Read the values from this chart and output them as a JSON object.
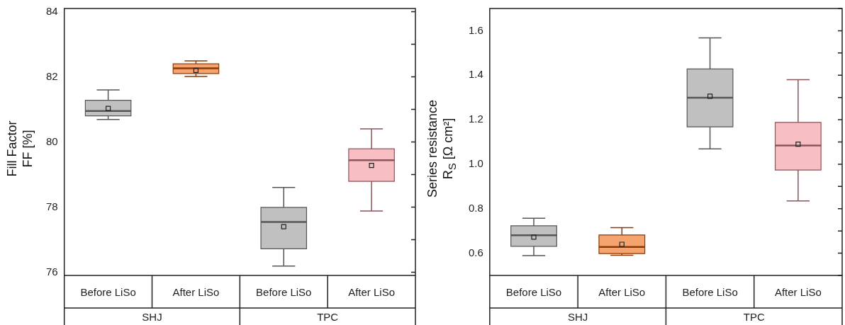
{
  "chart_data": [
    {
      "type": "box",
      "ylabel": "Fill Factor\nFF [%]",
      "categories": [
        "Before LiSo",
        "After LiSo",
        "Before LiSo",
        "After LiSo"
      ],
      "boxes": [
        {
          "low": 80.69,
          "q1": 80.8,
          "median": 80.95,
          "q3": 81.28,
          "high": 81.6,
          "mean": 81.03
        },
        {
          "low": 82.01,
          "q1": 82.1,
          "median": 82.26,
          "q3": 82.4,
          "high": 82.49,
          "mean": 82.2
        },
        {
          "low": 76.19,
          "q1": 76.72,
          "median": 77.54,
          "q3": 77.99,
          "high": 78.6,
          "mean": 77.4
        },
        {
          "low": 77.88,
          "q1": 78.79,
          "median": 79.44,
          "q3": 79.79,
          "high": 80.4,
          "mean": 79.28
        }
      ],
      "colors": [
        "#c0c0c0",
        "#f5a46f",
        "#c0c0c0",
        "#f7bec4"
      ],
      "ylim": [
        75.9,
        84.1
      ],
      "yticks": [
        76,
        {
          "value": 77,
          "label": null
        },
        78,
        {
          "value": 79,
          "label": null
        },
        80,
        {
          "value": 81,
          "label": null
        },
        82,
        {
          "value": 83,
          "label": null
        },
        84
      ],
      "marker": "square",
      "annotations": [
        "SHJ",
        "TPC"
      ]
    },
    {
      "type": "box",
      "ylabel": "Series resistance\nR$_{S}$ [Ω cm²]",
      "categories": [
        "Before LiSo",
        "After LiSo",
        "Before LiSo",
        "After LiSo"
      ],
      "boxes": [
        {
          "low": 0.589,
          "q1": 0.631,
          "median": 0.681,
          "q3": 0.723,
          "high": 0.757,
          "mean": 0.672
        },
        {
          "low": 0.591,
          "q1": 0.598,
          "median": 0.628,
          "q3": 0.682,
          "high": 0.715,
          "mean": 0.64
        },
        {
          "low": 1.069,
          "q1": 1.168,
          "median": 1.299,
          "q3": 1.428,
          "high": 1.568,
          "mean": 1.306
        },
        {
          "low": 0.835,
          "q1": 0.974,
          "median": 1.084,
          "q3": 1.188,
          "high": 1.38,
          "mean": 1.09
        }
      ],
      "colors": [
        "#c0c0c0",
        "#f5a46f",
        "#c0c0c0",
        "#f7bec4"
      ],
      "ylim": [
        0.5,
        1.7
      ],
      "yticks": [
        {
          "value": 0.5,
          "label": null
        },
        0.6,
        {
          "value": 0.7,
          "label": null
        },
        0.8,
        {
          "value": 0.9,
          "label": null
        },
        {
          "value": 1.0,
          "label": "1.0"
        },
        {
          "value": 1.1,
          "label": null
        },
        1.2,
        {
          "value": 1.3,
          "label": null
        },
        1.4,
        {
          "value": 1.5,
          "label": null
        },
        1.6,
        {
          "value": 1.7,
          "label": null
        }
      ],
      "marker": "square",
      "annotations": [
        "SHJ",
        "TPC"
      ]
    }
  ]
}
